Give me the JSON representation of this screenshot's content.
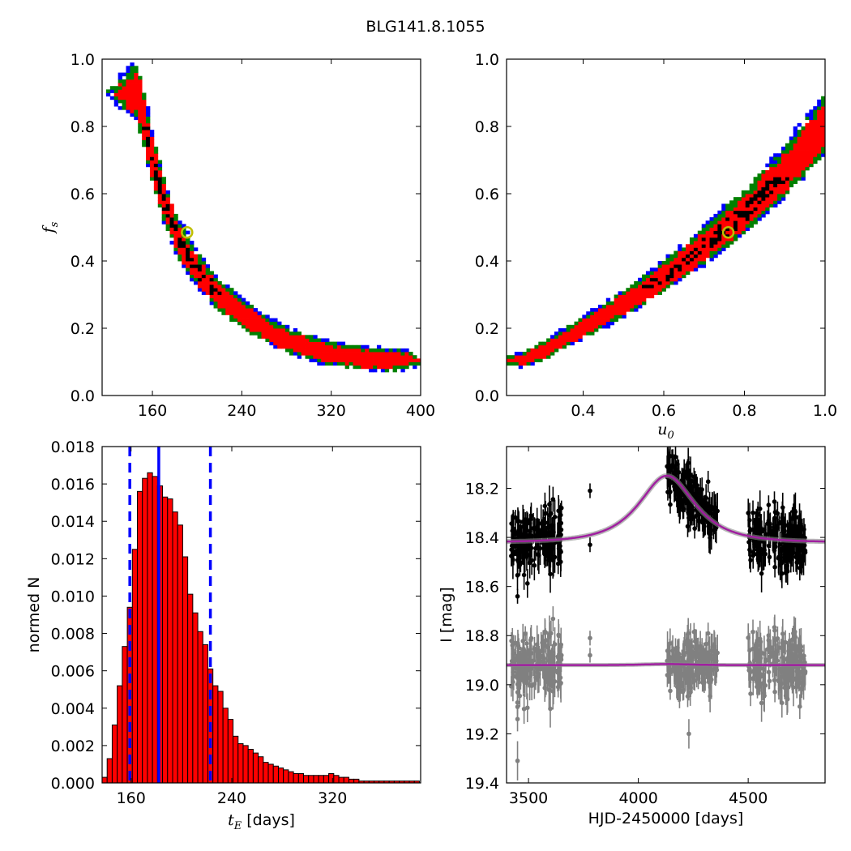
{
  "title": "BLG141.8.1055",
  "colors": {
    "level1": "#ff0000",
    "level2": "#008000",
    "level3": "#0000ff",
    "core": "#000000",
    "best_fit_marker": "#bfbf00",
    "histogram_bar": "#ff0000",
    "median_line": "#0000ff",
    "model_line": "#a020a0",
    "data_black": "#000000",
    "data_gray": "#808080"
  },
  "chart_data": [
    {
      "id": "tE_fs",
      "type": "heatmap",
      "xlabel": "",
      "ylabel": "f_s",
      "xlim": [
        115,
        400
      ],
      "ylim": [
        0.0,
        1.0
      ],
      "xticks": [
        160,
        240,
        320,
        400
      ],
      "yticks": [
        0.0,
        0.2,
        0.4,
        0.6,
        0.8,
        1.0
      ],
      "xtick_labels": [
        "160",
        "240",
        "320",
        "400"
      ],
      "ytick_labels": [
        "0.0",
        "0.2",
        "0.4",
        "0.6",
        "0.8",
        "1.0"
      ],
      "ridge": [
        [
          146,
          0.9
        ],
        [
          152,
          0.82
        ],
        [
          160,
          0.7
        ],
        [
          170,
          0.58
        ],
        [
          182,
          0.47
        ],
        [
          198,
          0.38
        ],
        [
          218,
          0.3
        ],
        [
          245,
          0.23
        ],
        [
          275,
          0.17
        ],
        [
          310,
          0.13
        ],
        [
          345,
          0.11
        ],
        [
          370,
          0.105
        ],
        [
          382,
          0.105
        ]
      ],
      "best_fit": {
        "x": 191,
        "y": 0.485
      }
    },
    {
      "id": "u0_fs",
      "type": "heatmap",
      "xlabel": "u_0",
      "ylabel": "",
      "xlim": [
        0.21,
        1.0
      ],
      "ylim": [
        0.0,
        1.0
      ],
      "xticks": [
        0.4,
        0.6,
        0.8,
        1.0
      ],
      "yticks": [
        0.0,
        0.2,
        0.4,
        0.6,
        0.8,
        1.0
      ],
      "xtick_labels": [
        "0.4",
        "0.6",
        "0.8",
        "1.0"
      ],
      "ytick_labels": [
        "0.0",
        "0.2",
        "0.4",
        "0.6",
        "0.8",
        "1.0"
      ],
      "ridge": [
        [
          0.25,
          0.105
        ],
        [
          0.3,
          0.13
        ],
        [
          0.4,
          0.2
        ],
        [
          0.5,
          0.27
        ],
        [
          0.6,
          0.35
        ],
        [
          0.7,
          0.44
        ],
        [
          0.8,
          0.54
        ],
        [
          0.9,
          0.66
        ],
        [
          1.0,
          0.8
        ]
      ],
      "best_fit": {
        "x": 0.76,
        "y": 0.485
      }
    },
    {
      "id": "tE_hist",
      "type": "bar",
      "xlabel": "t_E [days]",
      "ylabel": "normed N",
      "xlim": [
        137,
        390
      ],
      "ylim": [
        0.0,
        0.018
      ],
      "xticks": [
        160,
        240,
        320
      ],
      "yticks": [
        0.0,
        0.002,
        0.004,
        0.006,
        0.008,
        0.01,
        0.012,
        0.014,
        0.016,
        0.018
      ],
      "xtick_labels": [
        "160",
        "240",
        "320"
      ],
      "ytick_labels": [
        "0.000",
        "0.002",
        "0.004",
        "0.006",
        "0.008",
        "0.010",
        "0.012",
        "0.014",
        "0.016",
        "0.018"
      ],
      "bin_start": 137,
      "bin_width": 4,
      "values": [
        0.0003,
        0.0013,
        0.0031,
        0.0052,
        0.0073,
        0.0094,
        0.0125,
        0.0156,
        0.0163,
        0.0166,
        0.0164,
        0.0159,
        0.0153,
        0.0152,
        0.0145,
        0.0138,
        0.0121,
        0.0101,
        0.0091,
        0.0081,
        0.0074,
        0.0061,
        0.0052,
        0.0049,
        0.004,
        0.0034,
        0.0025,
        0.0021,
        0.002,
        0.0018,
        0.0016,
        0.0014,
        0.0011,
        0.001,
        0.0009,
        0.0008,
        0.0007,
        0.0006,
        0.0005,
        0.0005,
        0.0004,
        0.0004,
        0.0004,
        0.0004,
        0.0004,
        0.0005,
        0.0004,
        0.0003,
        0.0003,
        0.0002,
        0.0002,
        0.0001,
        0.0001,
        0.0001,
        0.0001,
        0.0001,
        0.0001,
        0.0001,
        0.0001,
        0.0001,
        0.0001,
        0.0001,
        0.0001
      ],
      "median": 182,
      "percentile_lines": [
        159,
        223
      ]
    },
    {
      "id": "lightcurve",
      "type": "scatter",
      "xlabel": "HJD-2450000 [days]",
      "ylabel": "I [mag]",
      "xlim": [
        3400,
        4850
      ],
      "ylim": [
        19.4,
        18.03
      ],
      "xticks": [
        3500,
        4000,
        4500
      ],
      "yticks": [
        18.2,
        18.4,
        18.6,
        18.8,
        19.0,
        19.2,
        19.4
      ],
      "xtick_labels": [
        "3500",
        "4000",
        "4500"
      ],
      "ytick_labels": [
        "18.2",
        "18.4",
        "18.6",
        "18.8",
        "19.0",
        "19.2",
        "19.4"
      ],
      "model": {
        "t0": 4130,
        "tE": 185,
        "u0": 0.76,
        "fs": 0.485,
        "base_mag": 18.42,
        "residual_base": 18.92
      },
      "seasons": [
        [
          3420,
          3650
        ],
        [
          4130,
          4360
        ],
        [
          4500,
          4760
        ]
      ],
      "outliers": [
        {
          "x": 3780,
          "y": 18.21
        },
        {
          "x": 3650,
          "y": 18.28
        },
        {
          "x": 3780,
          "y": 18.43
        },
        {
          "x": 3450,
          "y": 18.64
        }
      ]
    }
  ]
}
